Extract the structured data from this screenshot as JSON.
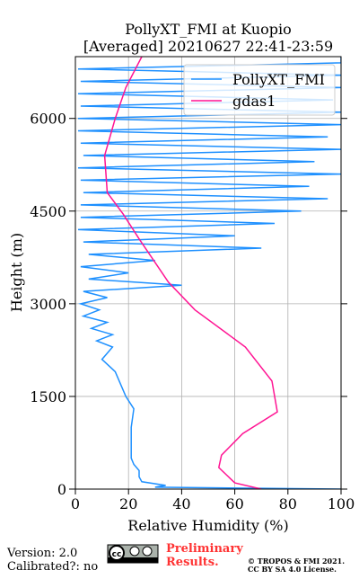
{
  "chart_data": {
    "type": "line",
    "title": [
      "PollyXT_FMI at Kuopio",
      "[Averaged] 20210627 22:41-23:59"
    ],
    "xlabel": "Relative Humidity (%)",
    "ylabel": "Height (m)",
    "xlim": [
      0,
      100
    ],
    "xticks": [
      0,
      20,
      40,
      60,
      80,
      100
    ],
    "ylim": [
      0,
      7000
    ],
    "yticks": [
      0,
      1500,
      3000,
      4500,
      6000
    ],
    "grid": true,
    "legend": "upper right",
    "series": [
      {
        "name": "PollyXT_FMI",
        "color": "#1e90ff",
        "x": [
          100,
          30,
          34,
          25,
          24,
          24,
          22,
          21,
          21,
          22,
          19,
          17,
          15,
          10,
          14,
          8,
          14,
          6,
          12,
          3,
          9,
          2,
          12,
          3,
          40,
          5,
          20,
          2,
          30,
          5,
          70,
          3,
          60,
          1,
          75,
          2,
          85,
          2,
          95,
          3,
          88,
          2,
          100,
          1,
          90,
          3,
          100,
          2,
          95,
          1,
          100,
          1,
          100,
          2,
          97,
          1,
          100,
          2,
          100,
          1,
          100,
          100
        ],
        "y": [
          0,
          30,
          60,
          120,
          200,
          300,
          400,
          500,
          1000,
          1300,
          1500,
          1700,
          1900,
          2100,
          2300,
          2400,
          2500,
          2600,
          2700,
          2800,
          2900,
          3000,
          3100,
          3200,
          3300,
          3400,
          3500,
          3600,
          3700,
          3800,
          3900,
          4000,
          4100,
          4200,
          4300,
          4400,
          4500,
          4600,
          4700,
          4800,
          4900,
          5000,
          5100,
          5200,
          5300,
          5400,
          5500,
          5600,
          5700,
          5800,
          5900,
          6000,
          6100,
          6200,
          6300,
          6400,
          6500,
          6600,
          6700,
          6800,
          6900,
          7000
        ]
      },
      {
        "name": "gdas1",
        "color": "#ff1493",
        "x": [
          70,
          60,
          54,
          55,
          63,
          76,
          74,
          64,
          45,
          35,
          24,
          18,
          12,
          11,
          15,
          19,
          25
        ],
        "y": [
          0,
          100,
          350,
          550,
          900,
          1250,
          1750,
          2300,
          2900,
          3350,
          4050,
          4450,
          4800,
          5400,
          6000,
          6500,
          7000
        ]
      }
    ]
  },
  "footer": {
    "version": "Version: 2.0",
    "calibrated": "Calibrated?: no",
    "preliminary": [
      "Preliminary",
      "Results."
    ],
    "license": [
      "© TROPOS & FMI 2021.",
      "CC BY SA 4.0 License."
    ]
  }
}
